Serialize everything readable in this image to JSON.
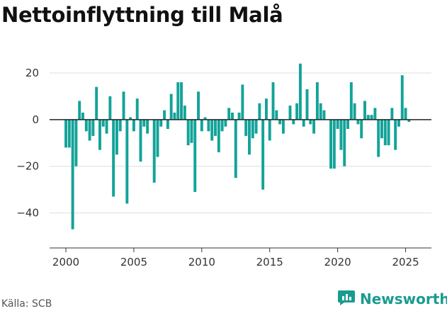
{
  "page": {
    "title": "Nettoinflyttning till Malå"
  },
  "footer": {
    "source": "Källa: SCB",
    "brand": "Newsworthy"
  },
  "colors": {
    "bar": "#13a399",
    "brand": "#1a9b8f",
    "zero_line": "#222222",
    "grid": "#dddddd"
  },
  "icons": {
    "brand_logo": "bar-chart-badge-icon"
  },
  "chart_data": {
    "type": "bar",
    "title": "",
    "xlabel": "",
    "ylabel": "",
    "x_start": 2000,
    "x_step": 0.25,
    "ylim": [
      -55,
      30
    ],
    "xlim": [
      1998.8,
      2026.9
    ],
    "yticks": [
      20,
      0,
      -20,
      -40
    ],
    "ytick_labels": [
      "20",
      "0",
      "−20",
      "−40"
    ],
    "xticks": [
      2000,
      2005,
      2010,
      2015,
      2020,
      2025
    ],
    "xtick_labels": [
      "2000",
      "2005",
      "2010",
      "2015",
      "2020",
      "2025"
    ],
    "grid": true,
    "series": [
      {
        "values": [
          -12,
          -12,
          -47,
          -20,
          8,
          3,
          -5,
          -9,
          -7,
          14,
          -13,
          -3,
          -6,
          10,
          -33,
          -15,
          -5,
          12,
          -36,
          1,
          -5,
          9,
          -18,
          -3,
          -6,
          0,
          -27,
          -16,
          -3,
          4,
          -4,
          11,
          3,
          16,
          16,
          6,
          -11,
          -10,
          -31,
          12,
          -5,
          1,
          -5,
          -9,
          -7,
          -14,
          -5,
          -3,
          5,
          3,
          -25,
          3,
          15,
          -7,
          -15,
          -8,
          -6,
          7,
          -30,
          9,
          -9,
          16,
          4,
          -2,
          -6,
          0,
          6,
          -2,
          7,
          24,
          -3,
          13,
          -2,
          -6,
          16,
          7,
          4,
          0,
          -21,
          -21,
          -4,
          -13,
          -20,
          -4,
          16,
          7,
          -2,
          -8,
          8,
          2,
          2,
          5,
          -16,
          -8,
          -11,
          -11,
          5,
          -13,
          -3,
          19,
          5,
          -1
        ]
      }
    ]
  }
}
